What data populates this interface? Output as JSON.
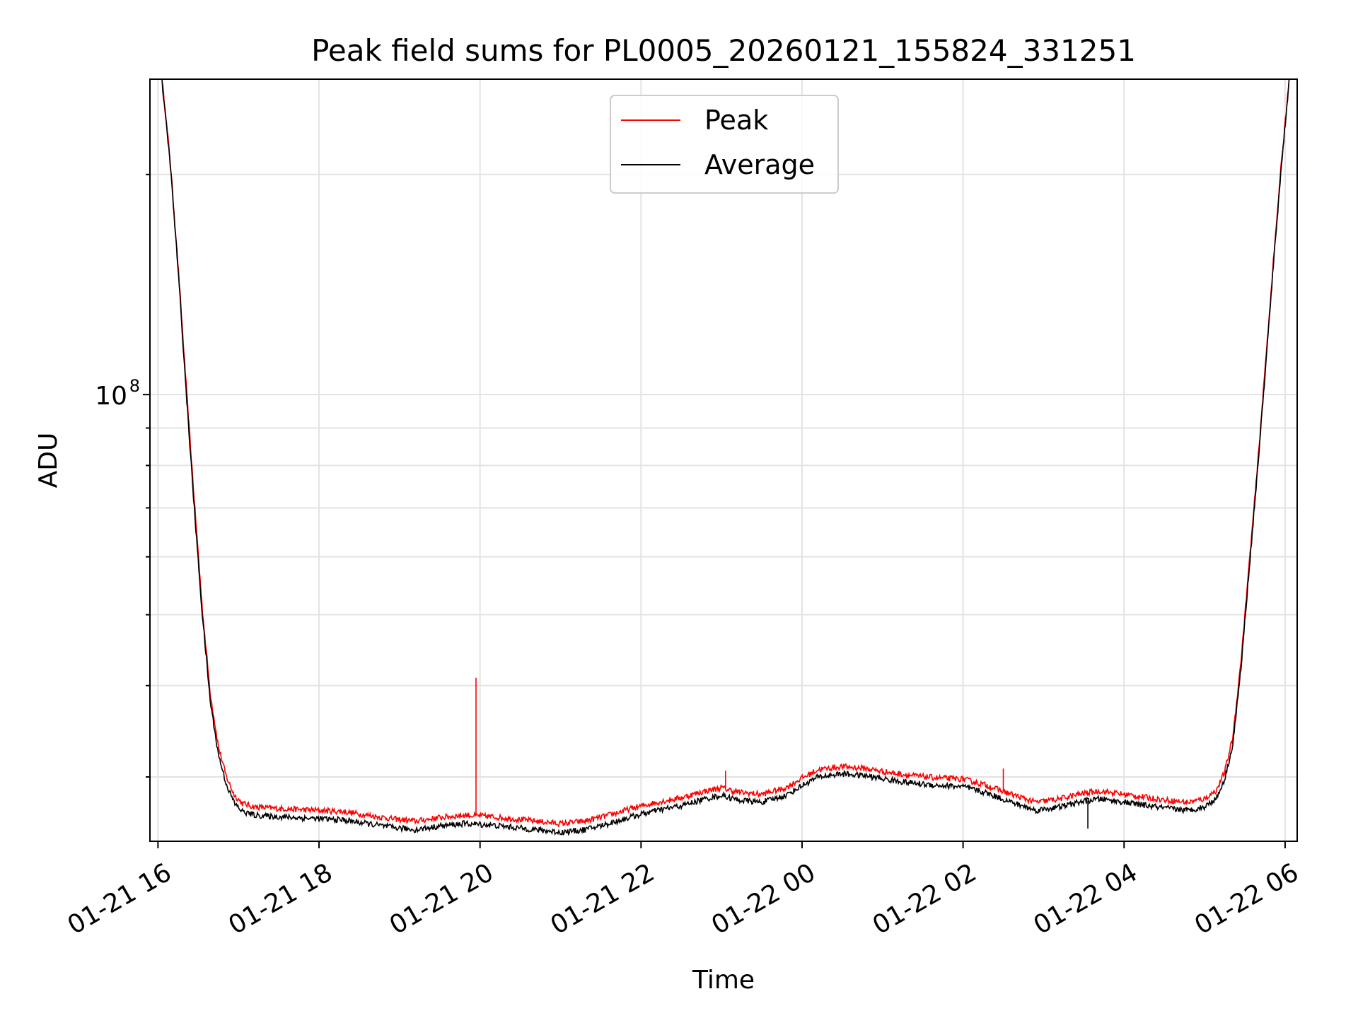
{
  "chart_data": {
    "type": "line",
    "title": "Peak field sums for PL0005_20260121_155824_331251",
    "xlabel": "Time",
    "ylabel": "ADU",
    "yscale": "log",
    "ylim": [
      24500000,
      270000000
    ],
    "xlim_hours": [
      15.9,
      30.15
    ],
    "grid": true,
    "legend_position": "upper-center",
    "x_tick_labels": [
      "01-21 16",
      "01-21 18",
      "01-21 20",
      "01-21 22",
      "01-22 00",
      "01-22 02",
      "01-22 04",
      "01-22 06"
    ],
    "x_tick_hours": [
      16,
      18,
      20,
      22,
      24,
      26,
      28,
      30
    ],
    "y_major_tick": {
      "value": 100000000,
      "base": "10",
      "exponent": "8"
    },
    "y_minor_ticks": [
      30000000,
      40000000,
      50000000,
      60000000,
      70000000,
      80000000,
      90000000,
      200000000
    ],
    "series": [
      {
        "name": "Peak",
        "color": "#ff0000",
        "hours": [
          16.05,
          16.15,
          16.25,
          16.35,
          16.45,
          16.55,
          16.65,
          16.75,
          16.85,
          16.95,
          17.05,
          17.2,
          17.4,
          17.7,
          18.0,
          18.3,
          18.6,
          18.9,
          19.2,
          19.5,
          19.8,
          20.1,
          20.4,
          20.7,
          21.0,
          21.3,
          21.6,
          21.9,
          22.2,
          22.5,
          22.8,
          23.0,
          23.2,
          23.5,
          23.8,
          24.0,
          24.2,
          24.5,
          24.8,
          25.1,
          25.4,
          25.7,
          26.0,
          26.3,
          26.6,
          26.9,
          27.2,
          27.5,
          27.7,
          27.9,
          28.2,
          28.5,
          28.8,
          29.0,
          29.15,
          29.25,
          29.35,
          29.45,
          29.55,
          29.65,
          29.75,
          29.85,
          29.95,
          30.05
        ],
        "values": [
          270000000,
          210000000,
          150000000,
          103000000,
          72000000,
          51000000,
          39000000,
          33000000,
          30000000,
          28300000,
          27600000,
          27300000,
          27200000,
          27100000,
          27000000,
          26900000,
          26600000,
          26300000,
          26100000,
          26400000,
          26600000,
          26500000,
          26300000,
          26100000,
          25900000,
          26100000,
          26600000,
          27200000,
          27700000,
          28100000,
          28700000,
          29000000,
          28600000,
          28400000,
          29000000,
          29900000,
          30700000,
          31000000,
          30800000,
          30400000,
          30100000,
          29900000,
          29800000,
          29200000,
          28400000,
          27700000,
          28000000,
          28500000,
          28700000,
          28500000,
          28200000,
          27900000,
          27700000,
          28000000,
          28800000,
          30500000,
          34000000,
          43000000,
          58000000,
          78000000,
          108000000,
          150000000,
          205000000,
          270000000
        ],
        "spikes": [
          {
            "hour": 19.95,
            "value": 41000000
          },
          {
            "hour": 23.05,
            "value": 30600000
          },
          {
            "hour": 26.5,
            "value": 30800000
          }
        ]
      },
      {
        "name": "Average",
        "color": "#000000",
        "hours": [
          16.05,
          16.15,
          16.25,
          16.35,
          16.45,
          16.55,
          16.65,
          16.75,
          16.85,
          16.95,
          17.05,
          17.2,
          17.4,
          17.7,
          18.0,
          18.3,
          18.6,
          18.9,
          19.2,
          19.5,
          19.8,
          20.1,
          20.4,
          20.7,
          21.0,
          21.3,
          21.6,
          21.9,
          22.2,
          22.5,
          22.8,
          23.0,
          23.2,
          23.5,
          23.8,
          24.0,
          24.2,
          24.5,
          24.8,
          25.1,
          25.4,
          25.7,
          26.0,
          26.3,
          26.6,
          26.9,
          27.2,
          27.5,
          27.7,
          27.9,
          28.2,
          28.5,
          28.8,
          29.0,
          29.15,
          29.25,
          29.35,
          29.45,
          29.55,
          29.65,
          29.75,
          29.85,
          29.95,
          30.05
        ],
        "values": [
          268000000,
          208000000,
          148000000,
          101000000,
          70000000,
          50000000,
          38000000,
          32200000,
          29300000,
          27600000,
          26900000,
          26600000,
          26500000,
          26400000,
          26300000,
          26200000,
          25900000,
          25600000,
          25400000,
          25700000,
          25900000,
          25800000,
          25600000,
          25400000,
          25200000,
          25400000,
          25900000,
          26500000,
          27000000,
          27400000,
          28000000,
          28300000,
          27900000,
          27700000,
          28300000,
          29200000,
          30000000,
          30300000,
          30100000,
          29700000,
          29400000,
          29200000,
          29100000,
          28500000,
          27700000,
          27000000,
          27300000,
          27800000,
          28000000,
          27800000,
          27500000,
          27200000,
          27000000,
          27300000,
          28100000,
          29800000,
          33200000,
          42000000,
          57000000,
          77000000,
          106000000,
          148000000,
          203000000,
          268000000
        ],
        "spikes": [
          {
            "hour": 27.55,
            "value": 25500000
          }
        ]
      }
    ]
  }
}
